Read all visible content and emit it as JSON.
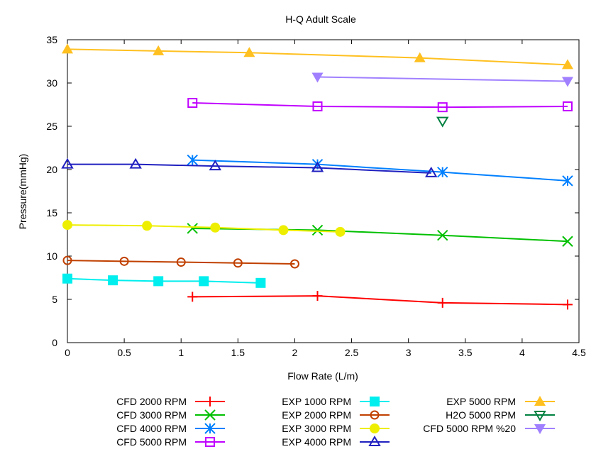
{
  "chart_data": {
    "type": "line",
    "title": "H-Q Adult Scale",
    "xlabel": "Flow Rate (L/m)",
    "ylabel": "Pressure(mmHg)",
    "xlim": [
      0,
      4.5
    ],
    "ylim": [
      0,
      35
    ],
    "xticks": [
      "0",
      "0.5",
      "1",
      "1.5",
      "2",
      "2.5",
      "3",
      "3.5",
      "4",
      "4.5"
    ],
    "yticks": [
      "0",
      "5",
      "10",
      "15",
      "20",
      "25",
      "30",
      "35"
    ],
    "grid": false,
    "legend_placement": "bottom",
    "series": [
      {
        "name": "CFD 2000 RPM",
        "color": "#ff0000",
        "marker": "plus",
        "x": [
          1.1,
          2.2,
          3.3,
          4.4
        ],
        "y": [
          5.3,
          5.4,
          4.6,
          4.4
        ]
      },
      {
        "name": "CFD 3000 RPM",
        "color": "#00c000",
        "marker": "cross",
        "x": [
          1.1,
          2.2,
          3.3,
          4.4
        ],
        "y": [
          13.2,
          13.0,
          12.4,
          11.7
        ]
      },
      {
        "name": "CFD 4000 RPM",
        "color": "#0080ff",
        "marker": "star",
        "x": [
          1.1,
          2.2,
          3.3,
          4.4
        ],
        "y": [
          21.1,
          20.6,
          19.7,
          18.7
        ]
      },
      {
        "name": "CFD 5000 RPM",
        "color": "#c000ff",
        "marker": "square-open",
        "x": [
          1.1,
          2.2,
          3.3,
          4.4
        ],
        "y": [
          27.7,
          27.3,
          27.2,
          27.3
        ]
      },
      {
        "name": "EXP 1000 RPM",
        "color": "#00eeee",
        "marker": "square-filled",
        "x": [
          0,
          0.4,
          0.8,
          1.2,
          1.7
        ],
        "y": [
          7.4,
          7.2,
          7.1,
          7.1,
          6.9
        ]
      },
      {
        "name": "EXP 2000 RPM",
        "color": "#c04000",
        "marker": "circle-open",
        "x": [
          0,
          0.5,
          1.0,
          1.5,
          2.0
        ],
        "y": [
          9.5,
          9.4,
          9.3,
          9.2,
          9.1
        ]
      },
      {
        "name": "EXP 3000 RPM",
        "color": "#eeee00",
        "marker": "circle-filled",
        "x": [
          0,
          0.7,
          1.3,
          1.9,
          2.4
        ],
        "y": [
          13.6,
          13.5,
          13.3,
          13.0,
          12.8
        ]
      },
      {
        "name": "EXP 4000 RPM",
        "color": "#2020c0",
        "marker": "triangle-open",
        "x": [
          0,
          0.6,
          1.3,
          2.2,
          3.2
        ],
        "y": [
          20.6,
          20.6,
          20.4,
          20.2,
          19.6
        ]
      },
      {
        "name": "EXP 5000 RPM",
        "color": "#ffc020",
        "marker": "triangle-filled",
        "x": [
          0,
          0.8,
          1.6,
          3.1,
          4.4
        ],
        "y": [
          33.9,
          33.7,
          33.5,
          32.9,
          32.1
        ]
      },
      {
        "name": "H2O 5000 RPM",
        "color": "#008040",
        "marker": "invtriangle-open",
        "x": [
          3.3
        ],
        "y": [
          25.6
        ]
      },
      {
        "name": "CFD 5000 RPM %20",
        "color": "#a080ff",
        "marker": "invtriangle-filled",
        "x": [
          2.2,
          4.4
        ],
        "y": [
          30.7,
          30.2
        ]
      }
    ]
  }
}
